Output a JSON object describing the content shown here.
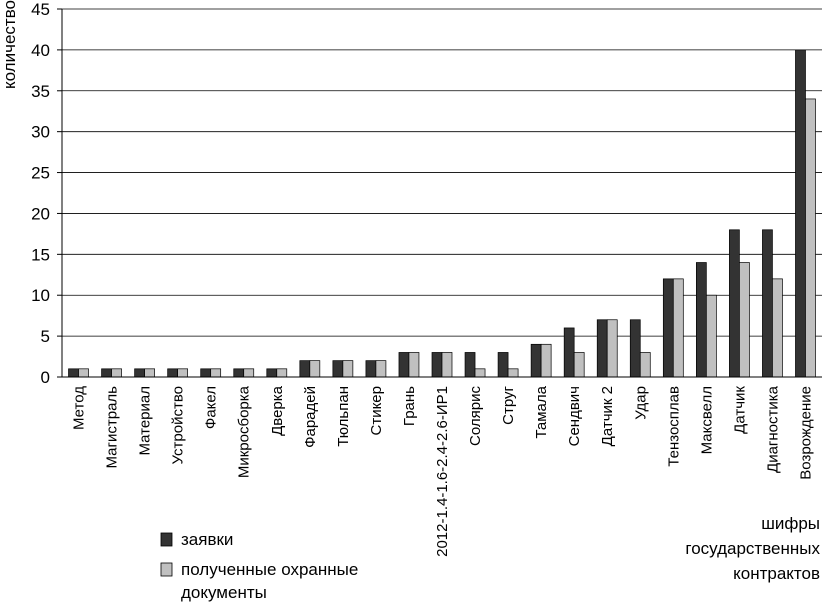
{
  "chart_data": {
    "type": "bar",
    "ylabel": "количество",
    "xlabel_lines": [
      "шифры",
      "государственных",
      "контрактов"
    ],
    "ylim": [
      0,
      45
    ],
    "yticks": [
      0,
      5,
      10,
      15,
      20,
      25,
      30,
      35,
      40,
      45
    ],
    "grid": true,
    "legend_placement": "bottom-left",
    "categories": [
      "Метод",
      "Магистраль",
      "Материал",
      "Устройство",
      "Факел",
      "Микросборка",
      "Дверка",
      "Фарадей",
      "Тюльпан",
      "Стикер",
      "Грань",
      "2012-1.4-1.6-2.4-2.6-ИР1",
      "Солярис",
      "Струг",
      "Тамала",
      "Сендвич",
      "Датчик 2",
      "Удар",
      "Тензосплав",
      "Максвелл",
      "Датчик",
      "Диагностика",
      "Возрождение"
    ],
    "series": [
      {
        "name": "заявки",
        "color": "#333333",
        "values": [
          1,
          1,
          1,
          1,
          1,
          1,
          1,
          2,
          2,
          2,
          3,
          3,
          3,
          3,
          4,
          6,
          7,
          7,
          12,
          14,
          18,
          18,
          40
        ]
      },
      {
        "name_lines": [
          "полученные охранные",
          "документы"
        ],
        "color": "#c0c0c0",
        "values": [
          1,
          1,
          1,
          1,
          1,
          1,
          1,
          2,
          2,
          2,
          3,
          3,
          1,
          1,
          4,
          3,
          7,
          3,
          12,
          10,
          14,
          12,
          34
        ]
      }
    ]
  }
}
